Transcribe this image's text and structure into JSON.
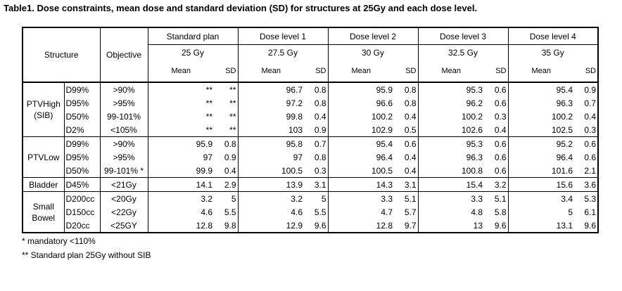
{
  "caption": "Table1. Dose constraints, mean dose and standard deviation (SD) for structures at 25Gy and each dose level.",
  "header": {
    "structure": "Structure",
    "objective": "Objective",
    "groups": [
      {
        "name": "Standard plan",
        "dose": "25 Gy"
      },
      {
        "name": "Dose level 1",
        "dose": "27.5 Gy"
      },
      {
        "name": "Dose level 2",
        "dose": "30 Gy"
      },
      {
        "name": "Dose level 3",
        "dose": "32.5 Gy"
      },
      {
        "name": "Dose level 4",
        "dose": "35 Gy"
      }
    ],
    "mean": "Mean",
    "sd": "SD"
  },
  "sections": [
    {
      "structure_lines": [
        "PTVHigh",
        "(SIB)"
      ],
      "rows": [
        {
          "metric": "D99%",
          "objective": ">90%",
          "values": [
            "**",
            "**",
            "96.7",
            "0.8",
            "95.9",
            "0.8",
            "95.3",
            "0.6",
            "95.4",
            "0.9"
          ]
        },
        {
          "metric": "D95%",
          "objective": ">95%",
          "values": [
            "**",
            "**",
            "97.2",
            "0.8",
            "96.6",
            "0.8",
            "96.2",
            "0.6",
            "96.3",
            "0.7"
          ]
        },
        {
          "metric": "D50%",
          "objective": "99-101%",
          "values": [
            "**",
            "**",
            "99.8",
            "0.4",
            "100.2",
            "0.4",
            "100.2",
            "0.3",
            "100.2",
            "0.4"
          ]
        },
        {
          "metric": "D2%",
          "objective": "<105%",
          "values": [
            "**",
            "**",
            "103",
            "0.9",
            "102.9",
            "0.5",
            "102.6",
            "0.4",
            "102.5",
            "0.3"
          ]
        }
      ]
    },
    {
      "structure_lines": [
        "PTVLow"
      ],
      "rows": [
        {
          "metric": "D99%",
          "objective": ">90%",
          "values": [
            "95.9",
            "0.8",
            "95.8",
            "0.7",
            "95.4",
            "0.6",
            "95.3",
            "0.6",
            "95.2",
            "0.6"
          ]
        },
        {
          "metric": "D95%",
          "objective": ">95%",
          "values": [
            "97",
            "0.9",
            "97",
            "0.8",
            "96.4",
            "0.4",
            "96.3",
            "0.6",
            "96.4",
            "0.6"
          ]
        },
        {
          "metric": "D50%",
          "objective": "99-101% *",
          "values": [
            "99.9",
            "0.4",
            "100.5",
            "0.3",
            "100.5",
            "0.4",
            "100.8",
            "0.6",
            "101.6",
            "2.1"
          ]
        }
      ]
    },
    {
      "structure_lines": [
        "Bladder"
      ],
      "rows": [
        {
          "metric": "D45%",
          "objective": "<21Gy",
          "values": [
            "14.1",
            "2.9",
            "13.9",
            "3.1",
            "14.3",
            "3.1",
            "15.4",
            "3.2",
            "15.6",
            "3.6"
          ]
        }
      ]
    },
    {
      "structure_lines": [
        "Small",
        "Bowel"
      ],
      "rows": [
        {
          "metric": "D200cc",
          "objective": "<20Gy",
          "values": [
            "3.2",
            "5",
            "3.2",
            "5",
            "3.3",
            "5.1",
            "3.3",
            "5.1",
            "3.4",
            "5.3"
          ]
        },
        {
          "metric": "D150cc",
          "objective": "<22Gy",
          "values": [
            "4.6",
            "5.5",
            "4.6",
            "5.5",
            "4.7",
            "5.7",
            "4.8",
            "5.8",
            "5",
            "6.1"
          ]
        },
        {
          "metric": "D20cc",
          "objective": "<25GY",
          "values": [
            "12.8",
            "9.8",
            "12.9",
            "9.6",
            "12.8",
            "9.7",
            "13",
            "9.6",
            "13.1",
            "9.6"
          ]
        }
      ]
    }
  ],
  "footnotes": [
    "* mandatory <110%",
    "** Standard plan 25Gy without SIB"
  ]
}
